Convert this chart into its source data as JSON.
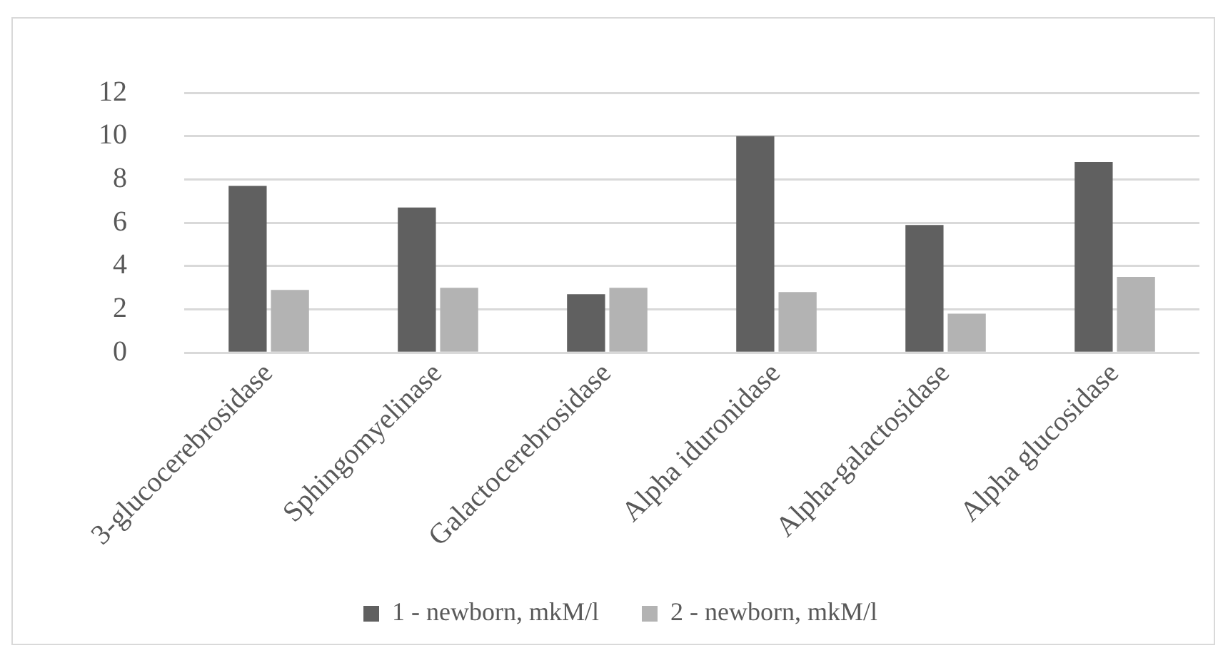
{
  "chart_data": {
    "type": "bar",
    "categories": [
      "3-glucocerebrosidase",
      "Sphingomyelinase",
      "Galactocerebrosidase",
      "Alpha iduronidase",
      "Alpha-galactosidase",
      "Alpha glucosidase"
    ],
    "series": [
      {
        "name": "1 - newborn, mkM/l",
        "color": "#606060",
        "values": [
          7.7,
          6.7,
          2.7,
          10.0,
          5.9,
          8.8
        ]
      },
      {
        "name": "2 - newborn, mkM/l",
        "color": "#b3b3b3",
        "values": [
          2.9,
          3.0,
          3.0,
          2.8,
          1.8,
          3.5
        ]
      }
    ],
    "ylim": [
      0,
      12
    ],
    "yticks": [
      0,
      2,
      4,
      6,
      8,
      10,
      12
    ],
    "grid": "y",
    "legend": "bottom"
  }
}
